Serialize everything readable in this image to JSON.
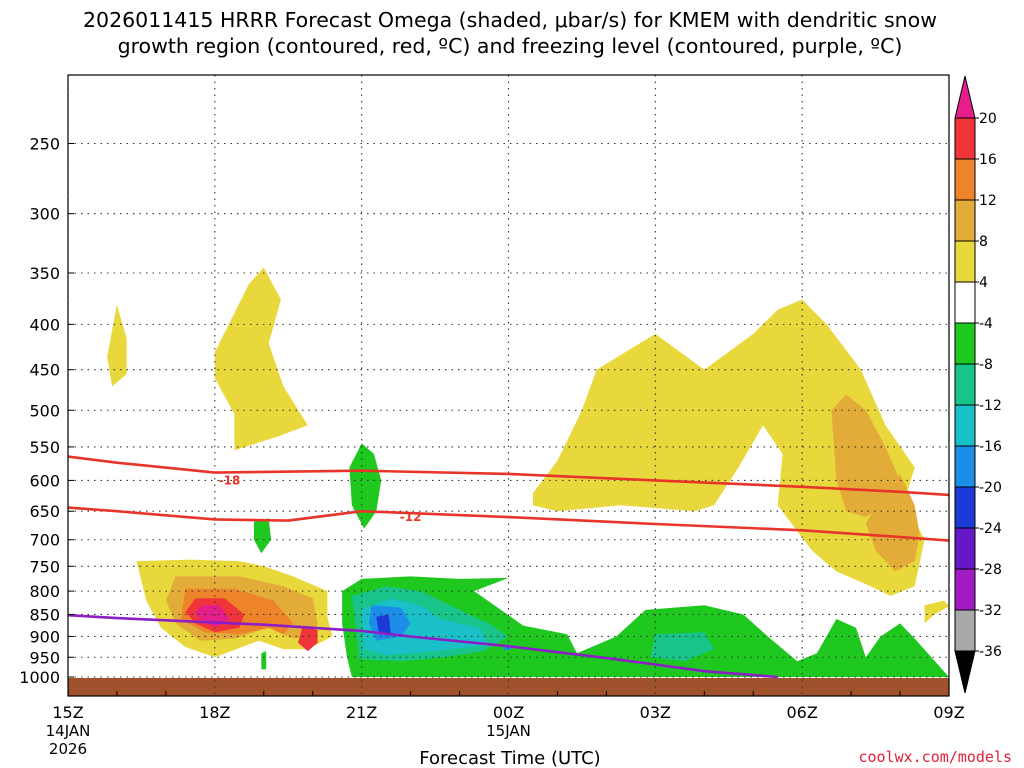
{
  "chart_data": {
    "type": "heatmap",
    "title_line1": "2026011415 HRRR Forecast Omega (shaded, μbar/s) for KMEM with dendritic snow",
    "title_line2": "growth region (contoured, red, ºC) and freezing level (contoured, purple, ºC)",
    "xlabel": "Forecast Time (UTC)",
    "ylabel": "",
    "credit": "coolwx.com/models",
    "x_range_hours": [
      0,
      18
    ],
    "y_range_hpa": [
      1050,
      200
    ],
    "x_ticks": [
      {
        "hour": 0,
        "label": "15Z",
        "sub1": "14JAN",
        "sub2": "2026"
      },
      {
        "hour": 3,
        "label": "18Z",
        "sub1": "",
        "sub2": ""
      },
      {
        "hour": 6,
        "label": "21Z",
        "sub1": "",
        "sub2": ""
      },
      {
        "hour": 9,
        "label": "00Z",
        "sub1": "15JAN",
        "sub2": ""
      },
      {
        "hour": 12,
        "label": "03Z",
        "sub1": "",
        "sub2": ""
      },
      {
        "hour": 15,
        "label": "06Z",
        "sub1": "",
        "sub2": ""
      },
      {
        "hour": 18,
        "label": "09Z",
        "sub1": "",
        "sub2": ""
      }
    ],
    "y_ticks": [
      250,
      300,
      350,
      400,
      450,
      500,
      550,
      600,
      650,
      700,
      750,
      800,
      850,
      900,
      950,
      1000
    ],
    "colorbar": {
      "labels": [
        "20",
        "16",
        "12",
        "8",
        "4",
        "-4",
        "-8",
        "-12",
        "-16",
        "-20",
        "-24",
        "-28",
        "-32",
        "-36"
      ],
      "bins": [
        {
          "min": 16,
          "max": 20,
          "color": "#f0353a"
        },
        {
          "min": 12,
          "max": 16,
          "color": "#ee842a"
        },
        {
          "min": 8,
          "max": 12,
          "color": "#e3ac38"
        },
        {
          "min": 4,
          "max": 8,
          "color": "#e8d83c"
        },
        {
          "min": -4,
          "max": 4,
          "color": "#ffffff"
        },
        {
          "min": -8,
          "max": -4,
          "color": "#1ec81e"
        },
        {
          "min": -12,
          "max": -8,
          "color": "#18c489"
        },
        {
          "min": -16,
          "max": -12,
          "color": "#1ac0c8"
        },
        {
          "min": -20,
          "max": -16,
          "color": "#1c8ee8"
        },
        {
          "min": -24,
          "max": -20,
          "color": "#1b3ad6"
        },
        {
          "min": -28,
          "max": -24,
          "color": "#6518c8"
        },
        {
          "min": -32,
          "max": -28,
          "color": "#a21ac4"
        },
        {
          "min": -36,
          "max": -32,
          "color": "#a8a8a8"
        }
      ],
      "over_color": "#e61e8c",
      "under_color": "#000000"
    },
    "colors": {
      "positive_4_8": "#e8d83c",
      "positive_8_12": "#e3ac38",
      "positive_12_16": "#ee842a",
      "positive_16_20": "#f0353a",
      "positive_over_20": "#e61e8c",
      "negative_4_8": "#1ec81e",
      "negative_8_12": "#18c489",
      "negative_12_16": "#1ac0c8",
      "negative_16_20": "#1c8ee8",
      "negative_20_24": "#1b3ad6",
      "dgz_contour": "#e8352a",
      "freezing_contour": "#8b1ec4",
      "ground": "#a0522d"
    },
    "series": [
      {
        "name": "-18 ºC isotherm",
        "label": "-18",
        "label_at": {
          "hour": 3.3,
          "hpa": 605
        },
        "points": [
          [
            -1,
            555
          ],
          [
            1,
            573
          ],
          [
            3,
            588
          ],
          [
            6,
            585
          ],
          [
            9,
            590
          ],
          [
            12,
            600
          ],
          [
            15,
            610
          ],
          [
            17,
            618
          ],
          [
            19,
            628
          ]
        ]
      },
      {
        "name": "-12 ºC isotherm",
        "label": "-12",
        "label_at": {
          "hour": 7.0,
          "hpa": 665
        },
        "points": [
          [
            -1,
            638
          ],
          [
            1,
            650
          ],
          [
            3,
            664
          ],
          [
            4.5,
            666
          ],
          [
            6,
            650
          ],
          [
            9,
            660
          ],
          [
            12,
            672
          ],
          [
            15,
            683
          ],
          [
            17,
            695
          ],
          [
            19,
            708
          ]
        ]
      },
      {
        "name": "freezing level",
        "points": [
          [
            -1,
            845
          ],
          [
            1,
            858
          ],
          [
            4,
            873
          ],
          [
            6,
            887
          ],
          [
            7,
            900
          ],
          [
            9,
            923
          ],
          [
            11,
            952
          ],
          [
            12,
            968
          ],
          [
            13,
            985
          ],
          [
            14.5,
            1000
          ]
        ]
      }
    ],
    "shaded_regions": [
      {
        "value_bin": "4 to 8",
        "points": [
          [
            1,
            380
          ],
          [
            1.2,
            415
          ],
          [
            1.2,
            455
          ],
          [
            0.9,
            470
          ],
          [
            0.8,
            435
          ]
        ]
      },
      {
        "value_bin": "4 to 8",
        "points": [
          [
            3.0,
            430
          ],
          [
            3.7,
            360
          ],
          [
            4.0,
            345
          ],
          [
            4.35,
            375
          ],
          [
            4.1,
            420
          ],
          [
            4.4,
            470
          ],
          [
            4.9,
            520
          ],
          [
            4.3,
            535
          ],
          [
            3.4,
            555
          ],
          [
            3.4,
            505
          ],
          [
            3.0,
            460
          ]
        ]
      },
      {
        "value_bin": "4 to 8",
        "points": [
          [
            9.5,
            620
          ],
          [
            10,
            570
          ],
          [
            10.5,
            500
          ],
          [
            10.8,
            450
          ],
          [
            12,
            410
          ],
          [
            13,
            450
          ],
          [
            14,
            410
          ],
          [
            14.5,
            385
          ],
          [
            15,
            375
          ],
          [
            15.5,
            400
          ],
          [
            16.2,
            450
          ],
          [
            16.7,
            520
          ],
          [
            17.3,
            580
          ],
          [
            17.1,
            630
          ],
          [
            17.5,
            700
          ],
          [
            17.3,
            790
          ],
          [
            16.8,
            810
          ],
          [
            16.4,
            790
          ],
          [
            15.7,
            760
          ],
          [
            15.2,
            720
          ],
          [
            14.5,
            640
          ],
          [
            14.6,
            560
          ],
          [
            14.2,
            520
          ],
          [
            13.7,
            580
          ],
          [
            13.2,
            640
          ],
          [
            12.8,
            650
          ],
          [
            11.3,
            640
          ],
          [
            10,
            650
          ],
          [
            9.5,
            640
          ]
        ]
      },
      {
        "value_bin": "8 to 12",
        "points": [
          [
            15.9,
            480
          ],
          [
            16.3,
            500
          ],
          [
            16.7,
            550
          ],
          [
            17.0,
            600
          ],
          [
            16.7,
            640
          ],
          [
            16.3,
            660
          ],
          [
            15.9,
            650
          ],
          [
            15.7,
            600
          ],
          [
            15.6,
            500
          ]
        ]
      },
      {
        "value_bin": "8 to 12",
        "points": [
          [
            16.7,
            620
          ],
          [
            17.0,
            590
          ],
          [
            17.3,
            640
          ],
          [
            17.4,
            690
          ],
          [
            17.3,
            740
          ],
          [
            16.9,
            760
          ],
          [
            16.5,
            720
          ],
          [
            16.3,
            670
          ]
        ]
      },
      {
        "value_bin": "4 to 8",
        "points": [
          [
            17.5,
            830
          ],
          [
            17.9,
            820
          ],
          [
            18.0,
            832
          ],
          [
            17.7,
            850
          ],
          [
            17.5,
            870
          ]
        ]
      },
      {
        "value_bin": "4 to 8",
        "points": [
          [
            1.4,
            740
          ],
          [
            2.5,
            737
          ],
          [
            3.5,
            740
          ],
          [
            4.0,
            750
          ],
          [
            4.6,
            770
          ],
          [
            5.3,
            800
          ],
          [
            5.3,
            855
          ],
          [
            5.4,
            900
          ],
          [
            4.9,
            930
          ],
          [
            4.4,
            930
          ],
          [
            3.9,
            910
          ],
          [
            3.0,
            950
          ],
          [
            2.4,
            925
          ],
          [
            1.9,
            880
          ],
          [
            1.6,
            820
          ]
        ]
      },
      {
        "value_bin": "8 to 12",
        "points": [
          [
            2.2,
            770
          ],
          [
            3.5,
            770
          ],
          [
            4.4,
            790
          ],
          [
            5.0,
            815
          ],
          [
            5.1,
            870
          ],
          [
            5.0,
            900
          ],
          [
            4.6,
            905
          ],
          [
            4.1,
            880
          ],
          [
            3.4,
            905
          ],
          [
            2.7,
            910
          ],
          [
            2.2,
            870
          ],
          [
            2.0,
            820
          ]
        ]
      },
      {
        "value_bin": "12 to 16",
        "points": [
          [
            2.4,
            795
          ],
          [
            3.4,
            795
          ],
          [
            4.2,
            820
          ],
          [
            4.6,
            870
          ],
          [
            4.4,
            895
          ],
          [
            4.1,
            880
          ],
          [
            3.5,
            895
          ],
          [
            2.8,
            890
          ],
          [
            2.3,
            860
          ]
        ]
      },
      {
        "value_bin": "16 to 20",
        "points": [
          [
            2.6,
            815
          ],
          [
            3.2,
            815
          ],
          [
            3.6,
            850
          ],
          [
            3.5,
            880
          ],
          [
            3.0,
            890
          ],
          [
            2.6,
            870
          ],
          [
            2.4,
            845
          ]
        ]
      },
      {
        "value_bin": "over 20",
        "points": [
          [
            2.75,
            830
          ],
          [
            3.1,
            830
          ],
          [
            3.3,
            860
          ],
          [
            3.05,
            878
          ],
          [
            2.75,
            868
          ],
          [
            2.6,
            845
          ]
        ]
      },
      {
        "value_bin": "16 to 20",
        "points": [
          [
            4.8,
            875
          ],
          [
            5.1,
            885
          ],
          [
            5.1,
            915
          ],
          [
            4.9,
            935
          ],
          [
            4.7,
            915
          ]
        ]
      },
      {
        "value_bin": "-4 to -8",
        "points": [
          [
            6.0,
            545
          ],
          [
            6.25,
            560
          ],
          [
            6.4,
            600
          ],
          [
            6.3,
            650
          ],
          [
            6.05,
            680
          ],
          [
            5.8,
            640
          ],
          [
            5.75,
            580
          ]
        ]
      },
      {
        "value_bin": "-4 to -8",
        "points": [
          [
            3.8,
            668
          ],
          [
            4.1,
            662
          ],
          [
            4.15,
            700
          ],
          [
            3.95,
            725
          ],
          [
            3.8,
            700
          ]
        ]
      },
      {
        "value_bin": "-4 to -8",
        "points": [
          [
            3.95,
            940
          ],
          [
            4.05,
            935
          ],
          [
            4.05,
            980
          ],
          [
            3.95,
            980
          ]
        ]
      },
      {
        "value_bin": "-4 to -8",
        "points": [
          [
            5.6,
            800
          ],
          [
            6.0,
            775
          ],
          [
            7.0,
            770
          ],
          [
            8.0,
            775
          ],
          [
            9.0,
            773
          ],
          [
            8.3,
            800
          ],
          [
            9.3,
            875
          ],
          [
            10.2,
            895
          ],
          [
            10.4,
            940
          ],
          [
            11.2,
            900
          ],
          [
            11.8,
            840
          ],
          [
            13.0,
            830
          ],
          [
            13.8,
            850
          ],
          [
            14.3,
            900
          ],
          [
            14.9,
            960
          ],
          [
            15.3,
            940
          ],
          [
            15.7,
            860
          ],
          [
            16.1,
            880
          ],
          [
            16.3,
            950
          ],
          [
            16.6,
            900
          ],
          [
            17.0,
            870
          ],
          [
            17.3,
            905
          ],
          [
            18.0,
            1000
          ],
          [
            5.8,
            1000
          ],
          [
            5.7,
            950
          ],
          [
            5.6,
            870
          ]
        ]
      },
      {
        "value_bin": "-8 to -12",
        "points": [
          [
            5.8,
            810
          ],
          [
            6.5,
            790
          ],
          [
            7.2,
            800
          ],
          [
            8.0,
            840
          ],
          [
            8.6,
            870
          ],
          [
            9.0,
            900
          ],
          [
            8.5,
            935
          ],
          [
            7.7,
            950
          ],
          [
            6.8,
            960
          ],
          [
            5.95,
            955
          ],
          [
            5.9,
            900
          ]
        ]
      },
      {
        "value_bin": "-8 to -12",
        "points": [
          [
            12.0,
            895
          ],
          [
            13.0,
            890
          ],
          [
            13.2,
            930
          ],
          [
            12.6,
            960
          ],
          [
            11.9,
            950
          ]
        ]
      },
      {
        "value_bin": "-12 to -16",
        "points": [
          [
            6.0,
            840
          ],
          [
            6.6,
            815
          ],
          [
            7.2,
            830
          ],
          [
            7.6,
            860
          ],
          [
            8.4,
            880
          ],
          [
            8.6,
            920
          ],
          [
            7.5,
            935
          ],
          [
            6.5,
            945
          ],
          [
            6.05,
            930
          ]
        ]
      },
      {
        "value_bin": "-16 to -20",
        "points": [
          [
            6.2,
            830
          ],
          [
            6.8,
            835
          ],
          [
            7.0,
            870
          ],
          [
            6.8,
            900
          ],
          [
            6.3,
            910
          ],
          [
            6.15,
            870
          ]
        ]
      },
      {
        "value_bin": "-20 to -24",
        "points": [
          [
            6.3,
            855
          ],
          [
            6.55,
            850
          ],
          [
            6.6,
            895
          ],
          [
            6.35,
            895
          ]
        ]
      },
      {
        "value_bin": "-16 to -20",
        "points": [
          [
            8.9,
            922
          ],
          [
            9.05,
            920
          ],
          [
            9.05,
            932
          ],
          [
            8.9,
            932
          ]
        ]
      }
    ]
  }
}
